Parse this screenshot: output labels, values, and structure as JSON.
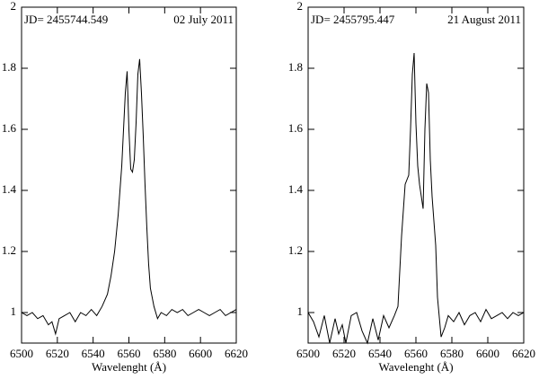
{
  "chart_data": [
    {
      "type": "line",
      "label_left": "JD= 2455744.549",
      "label_right": "02 July 2011",
      "xlabel": "Wavelenght (Å)",
      "xlim": [
        6500,
        6620
      ],
      "ylim": [
        0.9,
        2
      ],
      "xticks": [
        6500,
        6520,
        6540,
        6560,
        6580,
        6600,
        6620
      ],
      "yticks": [
        1,
        1.2,
        1.4,
        1.6,
        1.8,
        2
      ],
      "series": [
        {
          "color": "#000000",
          "x": [
            6500,
            6503,
            6506,
            6509,
            6512,
            6515,
            6517,
            6519,
            6521,
            6524,
            6527,
            6530,
            6533,
            6536,
            6539,
            6542,
            6545,
            6548,
            6550,
            6552,
            6554,
            6556,
            6557,
            6558,
            6559,
            6560,
            6561,
            6562,
            6563,
            6564,
            6565,
            6566,
            6567,
            6568,
            6569,
            6570,
            6571,
            6572,
            6574,
            6576,
            6578,
            6581,
            6584,
            6587,
            6590,
            6593,
            6596,
            6599,
            6602,
            6605,
            6608,
            6611,
            6614,
            6617,
            6620
          ],
          "values": [
            1.0,
            0.99,
            1.0,
            0.98,
            0.99,
            0.96,
            0.97,
            0.93,
            0.98,
            0.99,
            1.0,
            0.97,
            1.0,
            0.99,
            1.01,
            0.99,
            1.02,
            1.06,
            1.12,
            1.2,
            1.32,
            1.48,
            1.6,
            1.72,
            1.79,
            1.6,
            1.47,
            1.46,
            1.5,
            1.62,
            1.78,
            1.83,
            1.72,
            1.58,
            1.42,
            1.28,
            1.16,
            1.08,
            1.02,
            0.98,
            1.0,
            0.99,
            1.01,
            1.0,
            1.01,
            0.99,
            1.0,
            1.01,
            1.0,
            0.99,
            1.0,
            1.01,
            0.99,
            1.0,
            1.01
          ]
        }
      ]
    },
    {
      "type": "line",
      "label_left": "JD= 2455795.447",
      "label_right": "21 August 2011",
      "xlabel": "Wavelenght (Å)",
      "xlim": [
        6500,
        6620
      ],
      "ylim": [
        0.9,
        2
      ],
      "xticks": [
        6500,
        6520,
        6540,
        6560,
        6580,
        6600,
        6620
      ],
      "yticks": [
        1,
        1.2,
        1.4,
        1.6,
        1.8,
        2
      ],
      "series": [
        {
          "color": "#000000",
          "x": [
            6500,
            6503,
            6506,
            6509,
            6512,
            6515,
            6517,
            6519,
            6521,
            6524,
            6527,
            6530,
            6533,
            6536,
            6539,
            6542,
            6545,
            6548,
            6550,
            6552,
            6554,
            6556,
            6557,
            6558,
            6559,
            6560,
            6561,
            6562,
            6563,
            6564,
            6565,
            6566,
            6567,
            6568,
            6569,
            6570,
            6571,
            6572,
            6574,
            6576,
            6578,
            6581,
            6584,
            6587,
            6590,
            6593,
            6596,
            6599,
            6602,
            6605,
            6608,
            6611,
            6614,
            6617,
            6620
          ],
          "values": [
            1.0,
            0.97,
            0.92,
            0.99,
            0.9,
            0.98,
            0.93,
            0.96,
            0.9,
            0.99,
            1.0,
            0.94,
            0.9,
            0.98,
            0.91,
            0.99,
            0.95,
            0.99,
            1.02,
            1.25,
            1.42,
            1.45,
            1.6,
            1.78,
            1.85,
            1.62,
            1.48,
            1.42,
            1.38,
            1.34,
            1.6,
            1.75,
            1.72,
            1.5,
            1.38,
            1.3,
            1.22,
            1.05,
            0.92,
            0.95,
            0.99,
            0.97,
            1.0,
            0.96,
            0.99,
            1.0,
            0.97,
            1.01,
            0.98,
            0.99,
            1.0,
            0.98,
            1.0,
            0.99,
            1.0
          ]
        }
      ]
    }
  ]
}
